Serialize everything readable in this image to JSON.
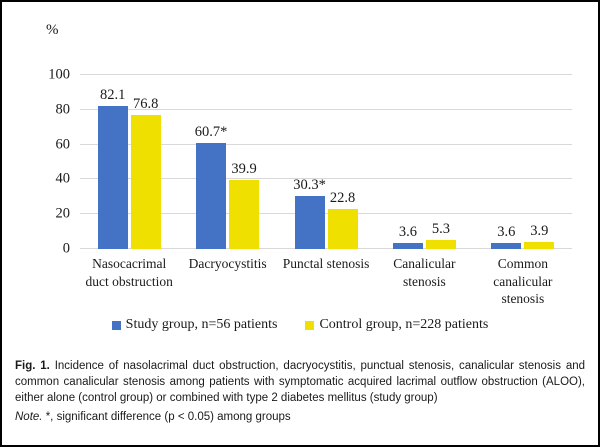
{
  "chart_data": {
    "type": "bar",
    "title": "",
    "unit_label": "%",
    "categories": [
      "Nasocacrimal duct obstruction",
      "Dacryocystitis",
      "Punctal stenosis",
      "Canalicular stenosis",
      "Common canalicular stenosis"
    ],
    "category_display_lines": [
      [
        "Nasocacrimal",
        "duct obstruction"
      ],
      [
        "Dacryocystitis"
      ],
      [
        "Punctal stenosis"
      ],
      [
        "Canalicular",
        "stenosis"
      ],
      [
        "Common",
        "canalicular",
        "stenosis"
      ]
    ],
    "series": [
      {
        "name": "Study group, n=56 patients",
        "color": "#4472C4",
        "values": [
          82.1,
          60.7,
          30.3,
          3.6,
          3.6
        ],
        "value_labels": [
          "82.1",
          "60.7*",
          "30.3*",
          "3.6",
          "3.6"
        ]
      },
      {
        "name": "Control group, n=228 patients",
        "color": "#F0E000",
        "values": [
          76.8,
          39.9,
          22.8,
          5.3,
          3.9
        ],
        "value_labels": [
          "76.8",
          "39.9",
          "22.8",
          "5.3",
          "3.9"
        ]
      }
    ],
    "ylim": [
      0,
      100
    ],
    "yticks": [
      0,
      20,
      40,
      60,
      80,
      100
    ],
    "grid": true,
    "gridline_color": "#d9d9d9",
    "legend_position": "bottom"
  },
  "caption": {
    "label": "Fig. 1.",
    "text": "Incidence of nasolacrimal duct obstruction, dacryocystitis, punctual stenosis, canalicular stenosis and common canalicular stenosis among patients with symptomatic acquired lacrimal outflow obstruction (ALOO), either alone (control group) or combined with type 2 diabetes mellitus (study group)"
  },
  "note": {
    "label": "Note.",
    "text": "*, significant difference (p < 0.05) among groups"
  }
}
